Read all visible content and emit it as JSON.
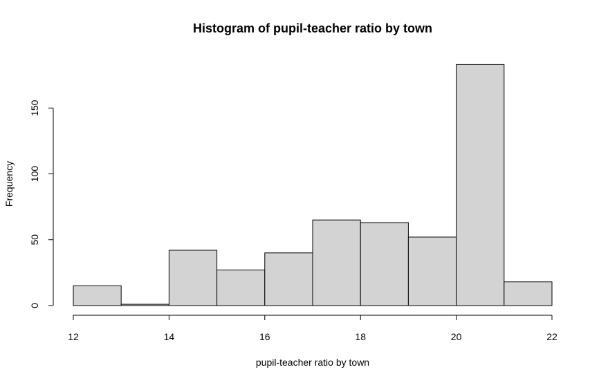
{
  "chart_data": {
    "type": "bar",
    "title": "Histogram of pupil-teacher ratio by town",
    "xlabel": "pupil-teacher ratio by town",
    "ylabel": "Frequency",
    "bins": [
      {
        "from": 12,
        "to": 13,
        "count": 15
      },
      {
        "from": 13,
        "to": 14,
        "count": 1
      },
      {
        "from": 14,
        "to": 15,
        "count": 42
      },
      {
        "from": 15,
        "to": 16,
        "count": 27
      },
      {
        "from": 16,
        "to": 17,
        "count": 40
      },
      {
        "from": 17,
        "to": 18,
        "count": 65
      },
      {
        "from": 18,
        "to": 19,
        "count": 63
      },
      {
        "from": 19,
        "to": 20,
        "count": 52
      },
      {
        "from": 20,
        "to": 21,
        "count": 183
      },
      {
        "from": 21,
        "to": 22,
        "count": 18
      }
    ],
    "xlim": [
      12,
      22
    ],
    "ylim": [
      0,
      183
    ],
    "x_ticks": [
      "12",
      "14",
      "16",
      "18",
      "20",
      "22"
    ],
    "y_ticks": [
      "0",
      "50",
      "100",
      "150"
    ],
    "grid": false,
    "legend": "none",
    "colors": {
      "bar_fill": "#d3d3d3",
      "bar_stroke": "#000000",
      "axis": "#000000",
      "background": "#ffffff"
    }
  }
}
